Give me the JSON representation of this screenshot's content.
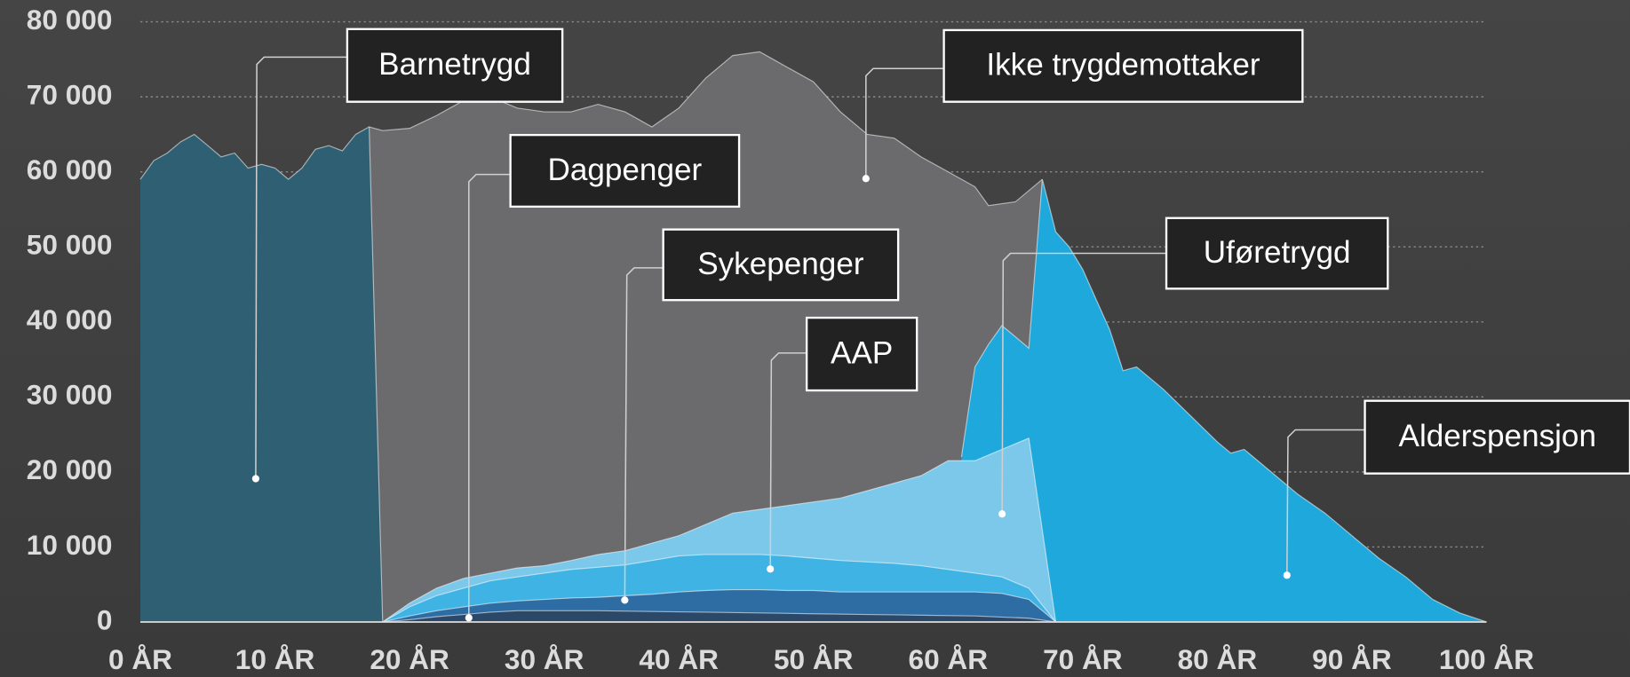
{
  "chart_data": {
    "type": "area",
    "xlim": [
      0,
      100
    ],
    "xticks": [
      {
        "value": 0,
        "label": "0 ÅR"
      },
      {
        "value": 10,
        "label": "10 ÅR"
      },
      {
        "value": 20,
        "label": "20 ÅR"
      },
      {
        "value": 30,
        "label": "30 ÅR"
      },
      {
        "value": 40,
        "label": "40 ÅR"
      },
      {
        "value": 50,
        "label": "50 ÅR"
      },
      {
        "value": 60,
        "label": "60 ÅR"
      },
      {
        "value": 70,
        "label": "70 ÅR"
      },
      {
        "value": 80,
        "label": "80 ÅR"
      },
      {
        "value": 90,
        "label": "90 ÅR"
      },
      {
        "value": 100,
        "label": "100 ÅR"
      }
    ],
    "ylim": [
      0,
      80000
    ],
    "yticks": [
      0,
      {
        "value": 10000,
        "label": "10 000"
      },
      {
        "value": 20000,
        "label": "20 000"
      },
      {
        "value": 30000,
        "label": "30 000"
      },
      {
        "value": 40000,
        "label": "40 000"
      },
      {
        "value": 50000,
        "label": "50 000"
      },
      {
        "value": 60000,
        "label": "60 000"
      },
      {
        "value": 70000,
        "label": "70 000"
      },
      {
        "value": 80000,
        "label": "80 000"
      }
    ],
    "grid": true,
    "series": [
      {
        "name": "Ikke trygdemottaker",
        "color": "#6b6b6e",
        "x": [
          17,
          18,
          20,
          22,
          24,
          26,
          28,
          30,
          32,
          34,
          36,
          38,
          40,
          42,
          44,
          46,
          47,
          48,
          50,
          52,
          54,
          56,
          58,
          60,
          62,
          63,
          65,
          67
        ],
        "values": [
          66000,
          65500,
          65800,
          67500,
          69500,
          70000,
          68500,
          68000,
          68000,
          69000,
          68000,
          66000,
          68500,
          72500,
          75500,
          76000,
          75000,
          74000,
          72000,
          68000,
          65000,
          64500,
          62000,
          60000,
          58000,
          55500,
          56000,
          59000
        ]
      },
      {
        "name": "Barnetrygd",
        "color": "#2f5f72",
        "x": [
          0,
          1,
          2,
          3,
          4,
          5,
          6,
          7,
          8,
          9,
          10,
          11,
          12,
          13,
          14,
          15,
          16,
          17,
          18
        ],
        "values": [
          59000,
          61500,
          62500,
          64000,
          65000,
          63500,
          62000,
          62500,
          60500,
          61000,
          60500,
          59000,
          60500,
          63000,
          63500,
          62800,
          65000,
          66000,
          0
        ]
      },
      {
        "name": "Alderspensjon",
        "color": "#1ea8dc",
        "x": [
          61,
          62,
          63,
          64,
          65,
          66,
          67,
          68,
          69,
          70,
          71,
          72,
          73,
          74,
          76,
          78,
          80,
          81,
          82,
          84,
          86,
          88,
          90,
          92,
          94,
          96,
          98,
          100
        ],
        "values": [
          22000,
          34000,
          37000,
          39500,
          38000,
          36500,
          59000,
          52000,
          50000,
          47000,
          43000,
          39000,
          33500,
          34000,
          31000,
          27500,
          24000,
          22500,
          23000,
          20000,
          17000,
          14500,
          11500,
          8500,
          6000,
          3000,
          1200,
          0
        ]
      },
      {
        "name": "Uføretrygd",
        "color": "#7cc8ea",
        "x": [
          18,
          20,
          22,
          24,
          26,
          28,
          30,
          32,
          34,
          36,
          38,
          40,
          42,
          44,
          46,
          48,
          50,
          52,
          54,
          56,
          58,
          60,
          62,
          64,
          66,
          68
        ],
        "values": [
          0,
          2500,
          4500,
          5800,
          6500,
          7200,
          7500,
          8200,
          9000,
          9500,
          10500,
          11500,
          13000,
          14500,
          15000,
          15500,
          16000,
          16500,
          17500,
          18500,
          19500,
          21500,
          21500,
          23000,
          24500,
          0
        ]
      },
      {
        "name": "AAP",
        "color": "#3fb3e3",
        "x": [
          18,
          20,
          22,
          24,
          26,
          28,
          30,
          32,
          34,
          36,
          38,
          40,
          42,
          44,
          46,
          48,
          50,
          52,
          54,
          56,
          58,
          60,
          62,
          64,
          66,
          68
        ],
        "values": [
          0,
          2000,
          3500,
          4500,
          5500,
          6000,
          6500,
          7000,
          7300,
          7600,
          8200,
          8800,
          9000,
          9000,
          9000,
          8800,
          8500,
          8200,
          8000,
          7800,
          7500,
          7000,
          6500,
          6000,
          4500,
          0
        ]
      },
      {
        "name": "Sykepenger",
        "color": "#2e6da3",
        "x": [
          18,
          20,
          22,
          24,
          26,
          28,
          30,
          32,
          34,
          36,
          38,
          40,
          42,
          44,
          46,
          48,
          50,
          52,
          54,
          56,
          58,
          60,
          62,
          64,
          66,
          68
        ],
        "values": [
          0,
          800,
          1500,
          2000,
          2500,
          2800,
          3000,
          3200,
          3300,
          3500,
          3700,
          4000,
          4200,
          4300,
          4300,
          4200,
          4200,
          4000,
          4000,
          4000,
          4000,
          4000,
          4000,
          3800,
          3000,
          0
        ]
      },
      {
        "name": "Dagpenger",
        "color": "#2b4868",
        "x": [
          18,
          20,
          22,
          24,
          26,
          28,
          30,
          34,
          38,
          42,
          46,
          50,
          54,
          58,
          62,
          66,
          68
        ],
        "values": [
          0,
          300,
          700,
          1000,
          1300,
          1500,
          1500,
          1500,
          1400,
          1300,
          1200,
          1100,
          1000,
          900,
          800,
          500,
          0
        ]
      }
    ]
  }
}
